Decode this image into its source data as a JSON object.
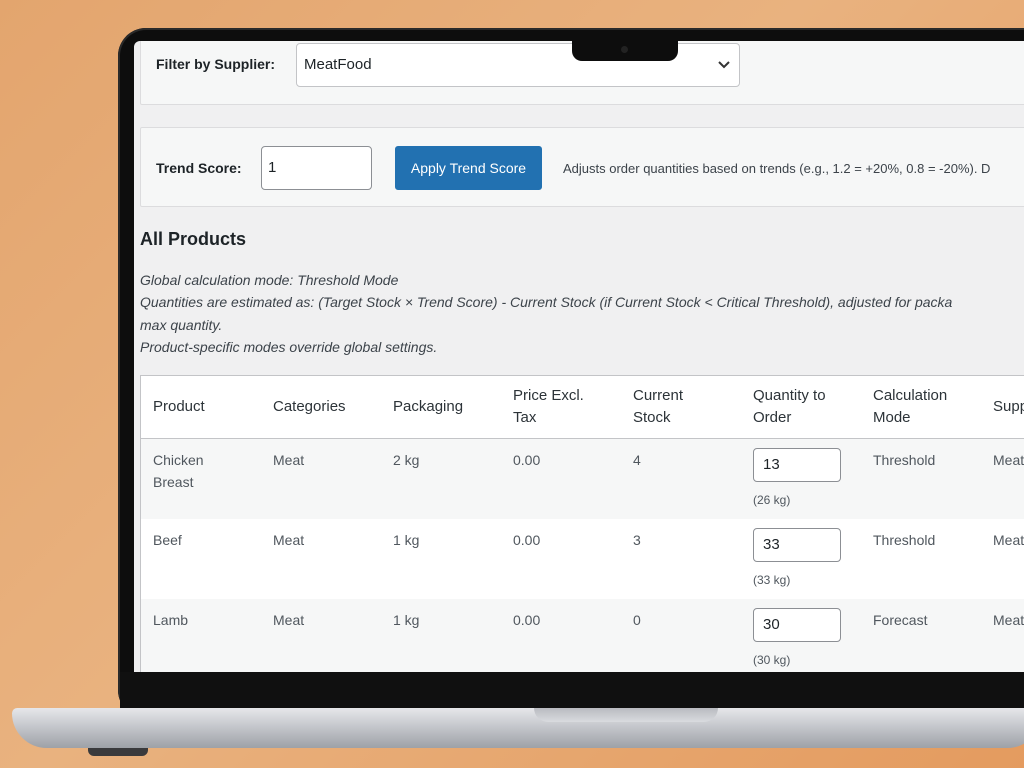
{
  "filter": {
    "label": "Filter by Supplier:",
    "selected": "MeatFood"
  },
  "trend": {
    "label": "Trend Score:",
    "value": "1",
    "button": "Apply Trend Score",
    "help": "Adjusts order quantities based on trends (e.g., 1.2 = +20%, 0.8 = -20%). D"
  },
  "section": {
    "title": "All Products",
    "line1": "Global calculation mode: Threshold Mode",
    "line2": "Quantities are estimated as: (Target Stock × Trend Score) - Current Stock (if Current Stock < Critical Threshold), adjusted for packa",
    "line3": "max quantity.",
    "line4": "Product-specific modes override global settings."
  },
  "table": {
    "headers": {
      "product": "Product",
      "categories": "Categories",
      "packaging": "Packaging",
      "price_1": "Price Excl.",
      "price_2": "Tax",
      "stock_1": "Current",
      "stock_2": "Stock",
      "qty_1": "Quantity to",
      "qty_2": "Order",
      "mode_1": "Calculation",
      "mode_2": "Mode",
      "supplier": "Supp"
    },
    "rows": [
      {
        "product_1": "Chicken",
        "product_2": "Breast",
        "category": "Meat",
        "packaging": "2 kg",
        "price": "0.00",
        "stock": "4",
        "qty": "13",
        "unit": "(26 kg)",
        "mode": "Threshold",
        "supplier": "Meat"
      },
      {
        "product_1": "Beef",
        "product_2": "",
        "category": "Meat",
        "packaging": "1 kg",
        "price": "0.00",
        "stock": "3",
        "qty": "33",
        "unit": "(33 kg)",
        "mode": "Threshold",
        "supplier": "Meat"
      },
      {
        "product_1": "Lamb",
        "product_2": "",
        "category": "Meat",
        "packaging": "1 kg",
        "price": "0.00",
        "stock": "0",
        "qty": "30",
        "unit": "(30 kg)",
        "mode": "Forecast",
        "supplier": "Meat"
      }
    ]
  }
}
